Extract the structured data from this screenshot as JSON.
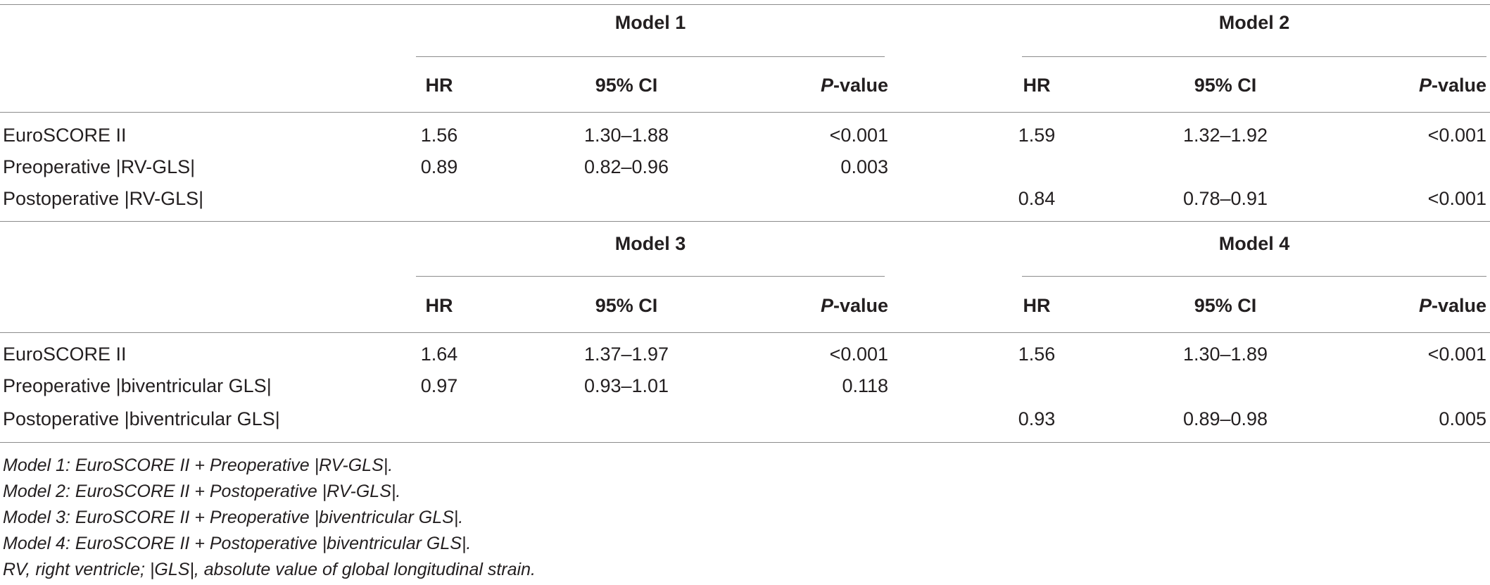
{
  "col_headers": {
    "hr": "HR",
    "ci": "95% CI",
    "p_prefix": "P",
    "p_suffix": "-value"
  },
  "blocks": [
    {
      "models": [
        "Model 1",
        "Model 2"
      ],
      "rows": [
        {
          "label": "EuroSCORE II",
          "m1": {
            "hr": "1.56",
            "ci": "1.30–1.88",
            "p": "<0.001"
          },
          "m2": {
            "hr": "1.59",
            "ci": "1.32–1.92",
            "p": "<0.001"
          }
        },
        {
          "label": "Preoperative |RV-GLS|",
          "m1": {
            "hr": "0.89",
            "ci": "0.82–0.96",
            "p": "0.003"
          },
          "m2": {
            "hr": "",
            "ci": "",
            "p": ""
          }
        },
        {
          "label": "Postoperative |RV-GLS|",
          "m1": {
            "hr": "",
            "ci": "",
            "p": ""
          },
          "m2": {
            "hr": "0.84",
            "ci": "0.78–0.91",
            "p": "<0.001"
          }
        }
      ]
    },
    {
      "models": [
        "Model 3",
        "Model 4"
      ],
      "rows": [
        {
          "label": "EuroSCORE II",
          "m1": {
            "hr": "1.64",
            "ci": "1.37–1.97",
            "p": "<0.001"
          },
          "m2": {
            "hr": "1.56",
            "ci": "1.30–1.89",
            "p": "<0.001"
          }
        },
        {
          "label": "Preoperative |biventricular GLS|",
          "m1": {
            "hr": "0.97",
            "ci": "0.93–1.01",
            "p": "0.118"
          },
          "m2": {
            "hr": "",
            "ci": "",
            "p": ""
          }
        },
        {
          "label": "Postoperative |biventricular GLS|",
          "m1": {
            "hr": "",
            "ci": "",
            "p": ""
          },
          "m2": {
            "hr": "0.93",
            "ci": "0.89–0.98",
            "p": "0.005"
          }
        }
      ]
    }
  ],
  "footnotes": [
    "Model 1: EuroSCORE II + Preoperative |RV-GLS|.",
    "Model 2: EuroSCORE II + Postoperative |RV-GLS|.",
    "Model 3: EuroSCORE II + Preoperative |biventricular GLS|.",
    "Model 4: EuroSCORE II + Postoperative |biventricular GLS|.",
    "RV, right ventricle; |GLS|, absolute value of global longitudinal strain."
  ]
}
